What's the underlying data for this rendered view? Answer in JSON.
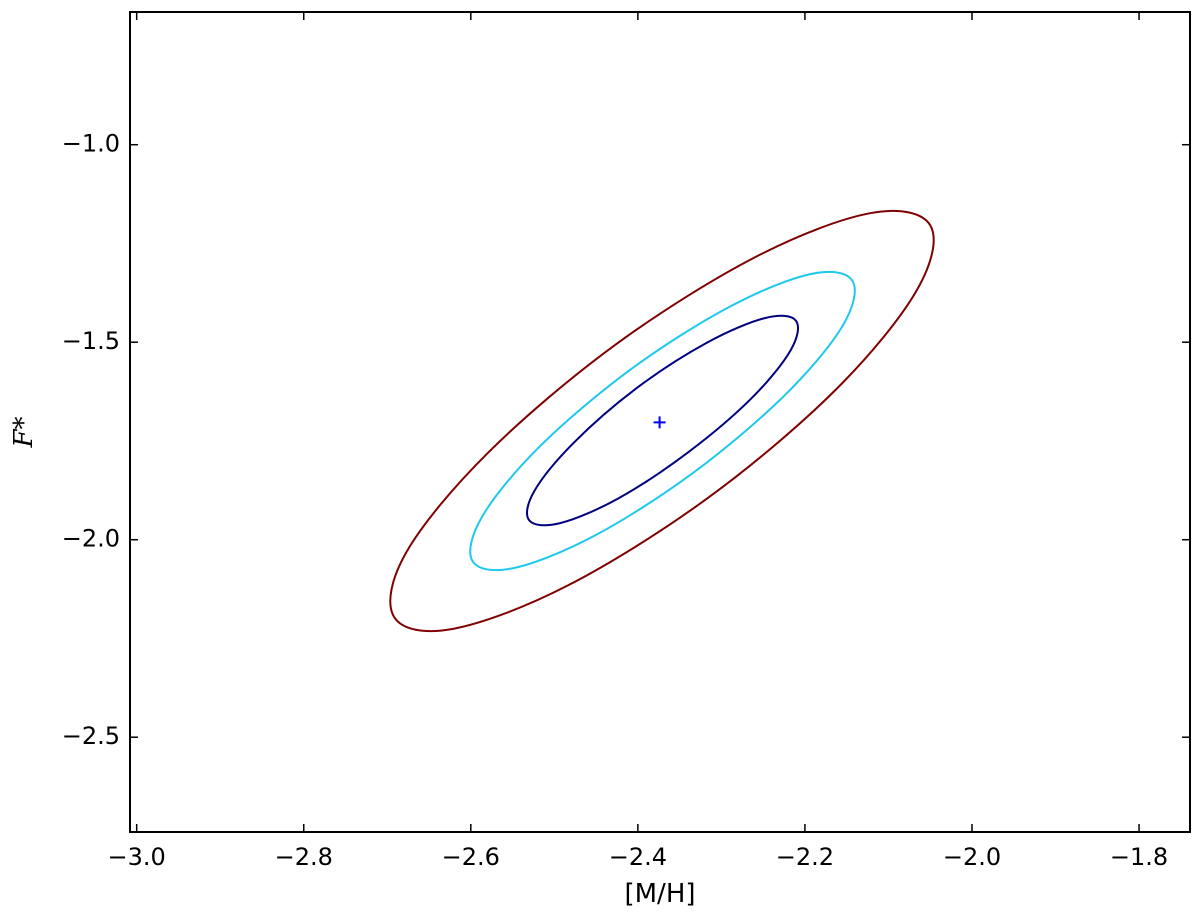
{
  "chart_data": {
    "type": "contour",
    "xlabel": "[M/H]",
    "ylabel": "F*",
    "xlim": [
      -3.008,
      -1.739
    ],
    "ylim": [
      -2.74,
      -0.664
    ],
    "xticks": [
      {
        "value": -3.0,
        "label": "−3.0"
      },
      {
        "value": -2.8,
        "label": "−2.8"
      },
      {
        "value": -2.6,
        "label": "−2.6"
      },
      {
        "value": -2.4,
        "label": "−2.4"
      },
      {
        "value": -2.2,
        "label": "−2.2"
      },
      {
        "value": -2.0,
        "label": "−2.0"
      },
      {
        "value": -1.8,
        "label": "−1.8"
      }
    ],
    "yticks": [
      {
        "value": -2.5,
        "label": "−2.5"
      },
      {
        "value": -2.0,
        "label": "−2.0"
      },
      {
        "value": -1.5,
        "label": "−1.5"
      },
      {
        "value": -1.0,
        "label": "−1.0"
      }
    ],
    "series": [
      {
        "color": "#7f0000",
        "x": [
          -2.05,
          -2.066,
          -2.163,
          -2.316,
          -2.484,
          -2.622,
          -2.692,
          -2.677,
          -2.579,
          -2.426,
          -2.258,
          -2.121
        ],
        "y": [
          -1.204,
          -1.368,
          -1.62,
          -1.894,
          -2.116,
          -2.226,
          -2.195,
          -2.031,
          -1.779,
          -1.505,
          -1.283,
          -1.173
        ]
      },
      {
        "color": "#1ec8ec",
        "x": [
          -2.143,
          -2.155,
          -2.225,
          -2.334,
          -2.452,
          -2.549,
          -2.598,
          -2.586,
          -2.517,
          -2.408,
          -2.289,
          -2.192
        ],
        "y": [
          -1.345,
          -1.459,
          -1.636,
          -1.831,
          -1.99,
          -2.072,
          -2.054,
          -1.94,
          -1.763,
          -1.568,
          -1.409,
          -1.327
        ]
      },
      {
        "color": "#000080",
        "x": [
          -2.211,
          -2.217,
          -2.264,
          -2.34,
          -2.423,
          -2.493,
          -2.53,
          -2.524,
          -2.477,
          -2.402,
          -2.318,
          -2.248
        ],
        "y": [
          -1.445,
          -1.52,
          -1.642,
          -1.779,
          -1.895,
          -1.958,
          -1.951,
          -1.877,
          -1.755,
          -1.617,
          -1.502,
          -1.439
        ]
      }
    ],
    "marker": {
      "x": -2.374,
      "y": -1.703,
      "color": "#0000ff"
    }
  }
}
